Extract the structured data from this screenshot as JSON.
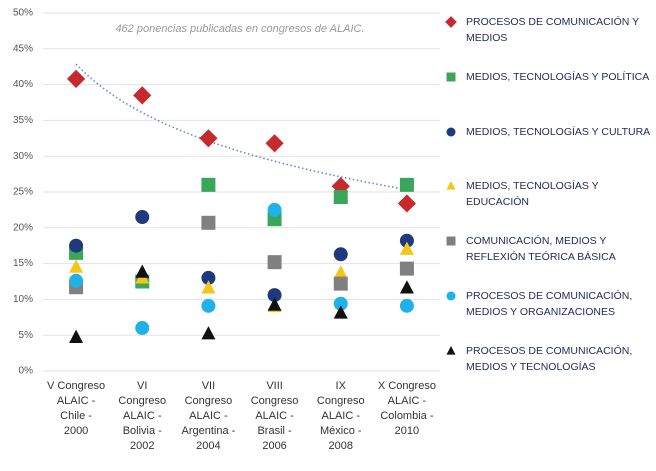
{
  "chart_data": {
    "type": "scatter",
    "annotation": "462 ponencias publicadas en congresos de ALAIC.",
    "categories": [
      [
        "V Congreso",
        "ALAIC -",
        "Chile -",
        "2000"
      ],
      [
        "VI",
        "Congreso",
        "ALAIC -",
        "Bolivia -",
        "2002"
      ],
      [
        "VII",
        "Congreso",
        "ALAIC -",
        "Argentina -",
        "2004"
      ],
      [
        "VIII",
        "Congreso",
        "ALAIC -",
        "Brasil -",
        "2006"
      ],
      [
        "IX",
        "Congreso",
        "ALAIC -",
        "México -",
        "2008"
      ],
      [
        "X Congreso",
        "ALAIC -",
        "Colombia -",
        "2010"
      ]
    ],
    "ylim": [
      0,
      50
    ],
    "yticks": [
      {
        "value": 0,
        "label": "0%"
      },
      {
        "value": 5,
        "label": "5%"
      },
      {
        "value": 10,
        "label": "10%"
      },
      {
        "value": 15,
        "label": "15%"
      },
      {
        "value": 20,
        "label": "20%"
      },
      {
        "value": 25,
        "label": "25%"
      },
      {
        "value": 30,
        "label": "30%"
      },
      {
        "value": 35,
        "label": "35%"
      },
      {
        "value": 40,
        "label": "40%"
      },
      {
        "value": 45,
        "label": "45%"
      },
      {
        "value": 50,
        "label": "50%"
      }
    ],
    "grid": true,
    "trendline": {
      "series": 0,
      "kind": "log",
      "color": "#6a8cbc"
    },
    "series": [
      {
        "name": "PROCESOS DE COMUNICACIÓN Y MEDIOS",
        "color": "#c62a2f",
        "marker": "diamond",
        "values": [
          40.8,
          38.5,
          32.5,
          31.8,
          25.8,
          23.4
        ]
      },
      {
        "name": "MEDIOS, TECNOLOGÍAS Y POLÍTICA",
        "color": "#3aa65a",
        "marker": "square",
        "values": [
          16.5,
          12.5,
          26,
          21.2,
          24.3,
          26
        ]
      },
      {
        "name": "MEDIOS, TECNOLOGÍAS Y CULTURA",
        "color": "#1f3a7a",
        "marker": "circle",
        "values": [
          17.5,
          21.5,
          13,
          10.6,
          16.3,
          18.2
        ]
      },
      {
        "name": "MEDIOS, TECNOLOGÍAS Y EDUCACIÓN",
        "color": "#f5c518",
        "marker": "triangle",
        "values": [
          14.5,
          13,
          11.6,
          9,
          13.7,
          17
        ]
      },
      {
        "name": "COMUNICACIÓN, MEDIOS Y REFLEXIÓN TEÓRICA BÁSICA",
        "color": "#808080",
        "marker": "square",
        "values": [
          11.7,
          null,
          20.7,
          15.2,
          12.2,
          14.3
        ]
      },
      {
        "name": "PROCESOS DE COMUNICACIÓN, MEDIOS Y ORGANIZACIONES",
        "color": "#1fb2e8",
        "marker": "circle",
        "values": [
          12.6,
          6,
          9.1,
          22.5,
          9.4,
          9.1
        ]
      },
      {
        "name": "PROCESOS DE COMUNICACIÓN, MEDIOS Y TECNOLOGÍAS",
        "color": "#111111",
        "marker": "triangle",
        "values": [
          4.7,
          13.8,
          5.2,
          9.2,
          8.1,
          11.6
        ]
      }
    ]
  }
}
